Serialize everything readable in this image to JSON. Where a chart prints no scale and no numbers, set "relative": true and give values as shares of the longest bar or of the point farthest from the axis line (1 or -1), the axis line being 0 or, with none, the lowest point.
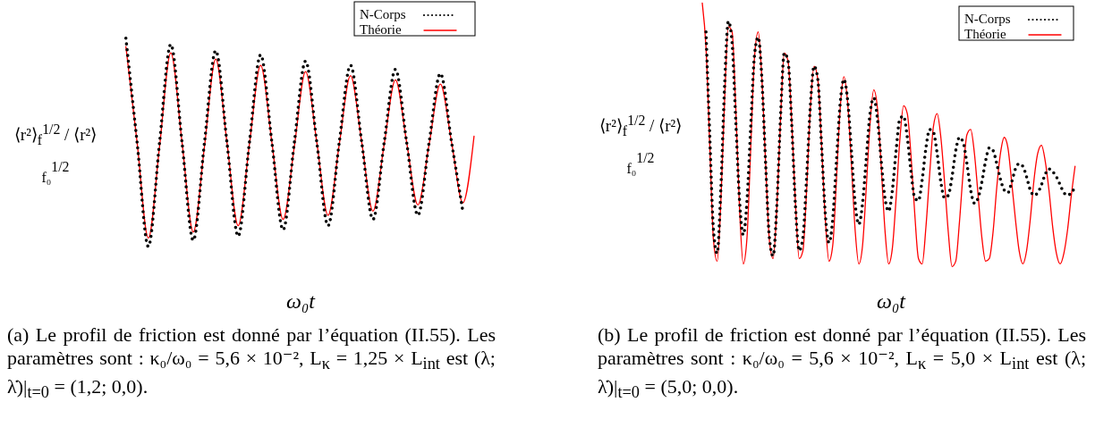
{
  "chart_data": [
    {
      "type": "line",
      "relative": true,
      "categories": [
        null,
        null,
        null,
        null,
        null,
        null,
        null,
        null,
        null,
        null,
        null,
        null,
        null,
        null,
        null,
        null,
        null,
        null,
        null,
        null,
        null,
        null,
        null,
        null,
        null,
        null,
        null,
        null,
        null,
        null,
        null,
        null
      ],
      "xlabel": "ω₀t",
      "ylabel": "⟨r²⟩$_{f}$$^{1/2}$ / ⟨r²⟩$_{f₀}$$^{1/2}$",
      "legend": "top right",
      "series": [
        {
          "name": "N-Corps",
          "color": "#000000",
          "line_style": "dotted",
          "values": [
            1.0,
            0.5,
            0.0,
            0.5,
            0.97,
            0.5,
            0.03,
            0.5,
            0.94,
            0.5,
            0.05,
            0.5,
            0.92,
            0.5,
            0.08,
            0.5,
            0.89,
            0.5,
            0.1,
            0.5,
            0.87,
            0.5,
            0.13,
            0.5,
            0.85,
            0.5,
            0.15,
            0.5,
            0.83,
            0.5,
            0.17,
            null
          ]
        },
        {
          "name": "Théorie",
          "color": "#ff0000",
          "line_style": "solid",
          "values": [
            0.96,
            0.5,
            0.04,
            0.48,
            0.93,
            0.5,
            0.07,
            0.48,
            0.9,
            0.5,
            0.1,
            0.49,
            0.87,
            0.5,
            0.13,
            0.48,
            0.84,
            0.5,
            0.15,
            0.49,
            0.82,
            0.5,
            0.17,
            0.49,
            0.8,
            0.5,
            0.2,
            0.49,
            0.78,
            0.5,
            0.21,
            0.53
          ]
        }
      ],
      "annotations": [
        "(a) Le profil de friction est donné par l’équation (II.55). Les paramètres sont : κ₀/ω₀ = 5,6 × 10⁻², L$_{κ}$ = 1,25 × L$_{int}$ est (λ; λ̇)|$_{t=0}$ = (1,2; 0,0)."
      ]
    },
    {
      "type": "line",
      "relative": true,
      "categories": [
        null,
        null,
        null,
        null,
        null,
        null,
        null,
        null,
        null,
        null,
        null,
        null,
        null,
        null,
        null,
        null,
        null,
        null,
        null,
        null,
        null,
        null,
        null,
        null,
        null,
        null,
        null,
        null,
        null,
        null,
        null,
        null,
        null,
        null,
        null,
        null,
        null,
        null,
        null,
        null,
        null,
        null,
        null,
        null,
        null,
        null,
        null,
        null,
        null,
        null,
        null,
        null,
        null,
        null,
        null,
        null,
        null,
        null,
        null,
        null,
        null,
        null,
        null,
        null,
        null,
        null,
        null,
        null,
        null,
        null,
        null,
        null,
        null,
        null,
        null,
        null,
        null,
        null,
        null,
        null,
        null,
        null,
        null,
        null,
        null,
        null,
        null,
        null,
        null,
        null,
        null,
        null,
        null,
        null,
        null,
        null,
        null,
        null,
        null,
        null,
        null
      ],
      "xlabel": "ω₀t",
      "ylabel": "⟨r²⟩$_{f}$$^{1/2}$ / ⟨r²⟩$_{f₀}$$^{1/2}$",
      "legend": "top right",
      "series": [
        {
          "name": "N-Corps",
          "color": "#000000",
          "line_style": "dotted",
          "values": [
            null,
            0.89,
            0.5,
            0.14,
            0.05,
            0.3,
            0.69,
            0.93,
            0.85,
            0.55,
            0.25,
            0.12,
            0.25,
            0.53,
            0.8,
            0.87,
            0.71,
            0.39,
            0.11,
            0.04,
            0.23,
            0.57,
            0.81,
            0.78,
            0.54,
            0.23,
            0.06,
            0.11,
            0.34,
            0.61,
            0.76,
            0.71,
            0.46,
            0.2,
            0.09,
            0.18,
            0.4,
            0.62,
            0.71,
            0.63,
            0.44,
            0.24,
            0.16,
            0.24,
            0.41,
            0.58,
            0.64,
            0.56,
            0.4,
            0.26,
            0.21,
            0.29,
            0.44,
            0.56,
            0.57,
            0.49,
            0.36,
            0.26,
            0.25,
            0.33,
            0.45,
            0.52,
            0.51,
            0.43,
            0.32,
            0.26,
            0.27,
            0.34,
            0.44,
            0.49,
            0.47,
            0.39,
            0.29,
            0.24,
            0.26,
            0.32,
            0.4,
            0.45,
            0.44,
            0.39,
            0.33,
            0.29,
            0.28,
            0.32,
            0.37,
            0.39,
            0.38,
            0.34,
            0.29,
            0.27,
            0.28,
            0.31,
            0.35,
            0.37,
            0.36,
            0.34,
            0.31,
            0.28,
            0.27,
            0.28,
            0.3
          ]
        },
        {
          "name": "Théorie",
          "color": "#ff0000",
          "line_style": "solid",
          "values": [
            1.0,
            0.83,
            0.46,
            0.1,
            0.02,
            0.25,
            0.63,
            0.91,
            0.89,
            0.6,
            0.22,
            0.01,
            0.11,
            0.45,
            0.79,
            0.89,
            0.71,
            0.39,
            0.1,
            0.03,
            0.22,
            0.56,
            0.81,
            0.78,
            0.55,
            0.24,
            0.03,
            0.06,
            0.29,
            0.6,
            0.76,
            0.71,
            0.46,
            0.18,
            0.02,
            0.08,
            0.33,
            0.6,
            0.72,
            0.62,
            0.39,
            0.14,
            0.01,
            0.08,
            0.3,
            0.54,
            0.67,
            0.6,
            0.38,
            0.14,
            0.01,
            0.07,
            0.26,
            0.48,
            0.61,
            0.58,
            0.42,
            0.2,
            0.03,
            0.01,
            0.15,
            0.35,
            0.53,
            0.58,
            0.49,
            0.32,
            0.13,
            0.0,
            0.02,
            0.17,
            0.36,
            0.5,
            0.52,
            0.43,
            0.27,
            0.11,
            0.02,
            0.03,
            0.13,
            0.3,
            0.43,
            0.49,
            0.45,
            0.32,
            0.18,
            0.06,
            0.01,
            0.06,
            0.18,
            0.33,
            0.43,
            0.46,
            0.4,
            0.29,
            0.15,
            0.05,
            0.01,
            0.05,
            0.14,
            0.27,
            0.38
          ]
        }
      ],
      "annotations": [
        "(b) Le profil de friction est donné par l’équation (II.55). Les paramètres sont : κ₀/ω₀ = 5,6 × 10⁻², L$_{κ}$ = 5,0 × L$_{int}$ est (λ; λ̇)|$_{t=0}$ = (5,0; 0,0)."
      ]
    }
  ]
}
